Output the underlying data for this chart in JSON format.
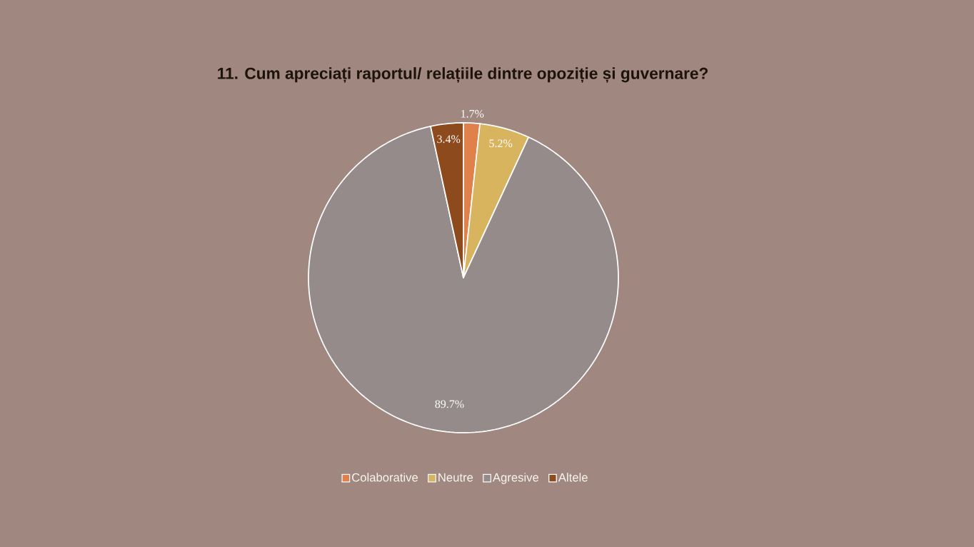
{
  "chart_data": {
    "type": "pie",
    "title": "11. Cum apreciați raportul/ relațiile dintre opoziție și guvernare?",
    "categories": [
      "Colaborative",
      "Neutre",
      "Agresive",
      "Altele"
    ],
    "values": [
      1.7,
      5.2,
      89.7,
      3.4
    ],
    "colors": [
      "#e0804a",
      "#d8b45e",
      "#958b8a",
      "#8c4a1d"
    ],
    "value_labels": [
      "1.7%",
      "5.2%",
      "89.7%",
      "3.4%"
    ],
    "legend": "bottom"
  }
}
